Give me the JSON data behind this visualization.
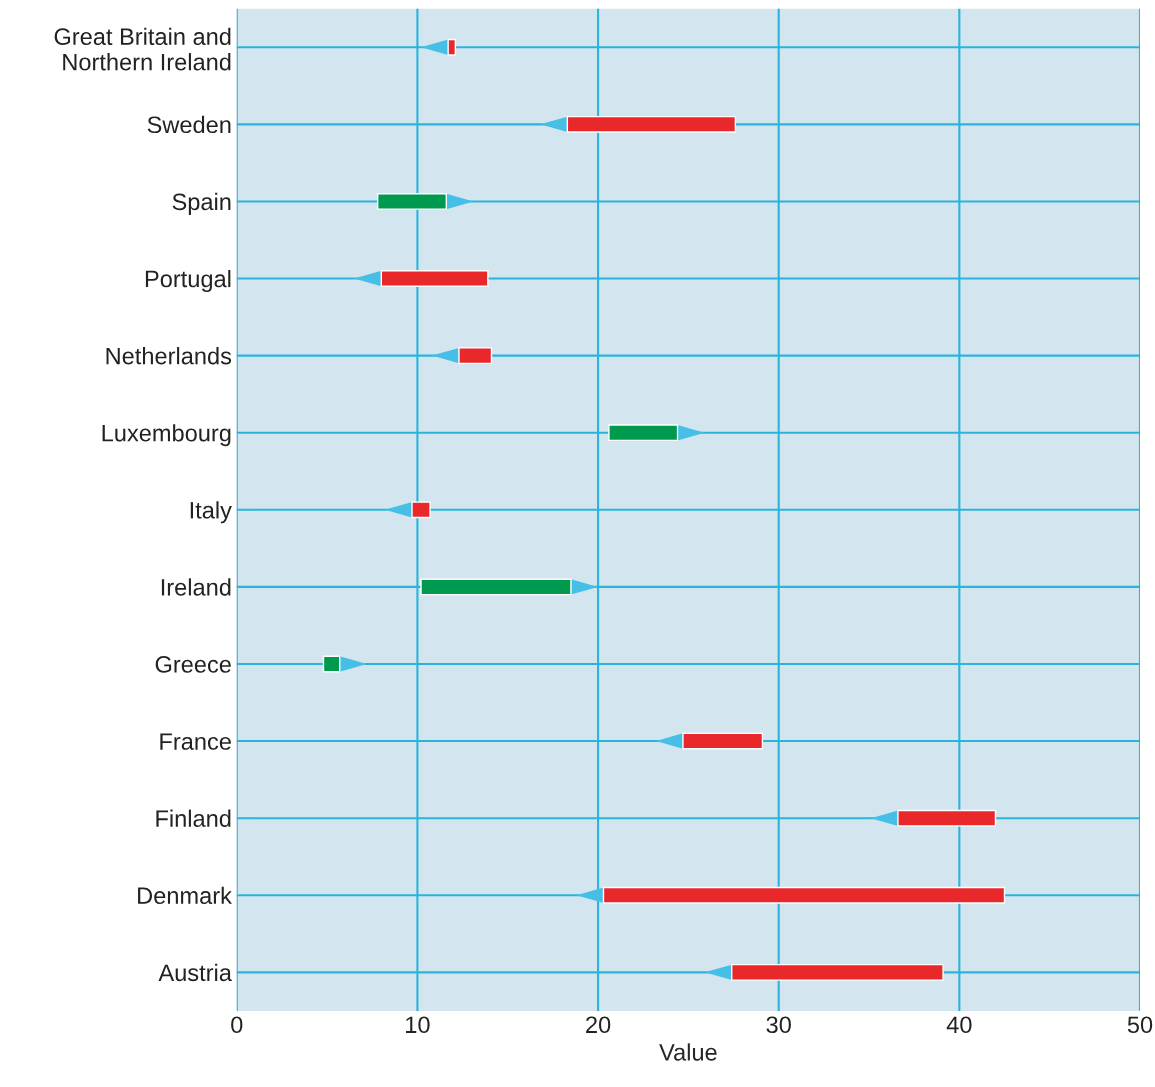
{
  "chart_data": {
    "type": "bar",
    "orientation": "horizontal",
    "xlabel": "Value",
    "categories": [
      "Great Britain and\nNorthern Ireland",
      "Sweden",
      "Spain",
      "Portugal",
      "Netherlands",
      "Luxembourg",
      "Italy",
      "Ireland",
      "Greece",
      "France",
      "Finland",
      "Denmark",
      "Austria"
    ],
    "base": [
      12.1,
      27.6,
      7.8,
      13.9,
      14.1,
      20.6,
      10.7,
      10.2,
      4.8,
      29.1,
      42.0,
      42.5,
      39.1
    ],
    "values": [
      -0.4,
      -9.3,
      3.8,
      -5.9,
      -1.8,
      3.8,
      -1.0,
      8.3,
      0.9,
      -4.4,
      -5.4,
      -22.2,
      -11.7
    ],
    "colors": [
      "#e8282b",
      "#e8282b",
      "#009a4e",
      "#e8282b",
      "#e8282b",
      "#009a4e",
      "#e8282b",
      "#009a4e",
      "#009a4e",
      "#e8282b",
      "#e8282b",
      "#e8282b",
      "#e8282b"
    ],
    "xlim": [
      0,
      50
    ],
    "xticks": [
      0,
      10,
      20,
      30,
      40,
      50
    ],
    "grid": true
  }
}
